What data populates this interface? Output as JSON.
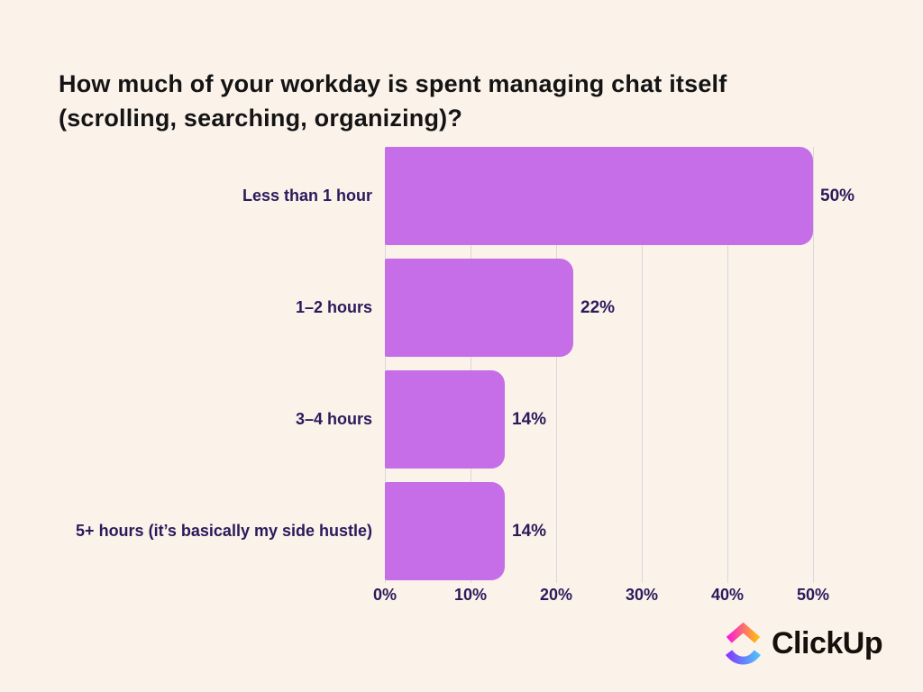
{
  "title": {
    "text": "How much of your workday is spent managing chat itself (scrolling, searching, organizing)?",
    "lines": [
      "How much of your workday is spent managing chat itself",
      "(scrolling, searching, organizing)?"
    ]
  },
  "chart_data": {
    "type": "bar",
    "orientation": "horizontal",
    "title": "How much of your workday is spent managing chat itself (scrolling, searching, organizing)?",
    "categories": [
      "Less than 1 hour",
      "1–2 hours",
      "3–4 hours",
      "5+ hours (it’s basically my side hustle)"
    ],
    "values": [
      50,
      22,
      14,
      14
    ],
    "value_labels": [
      "50%",
      "22%",
      "14%",
      "14%"
    ],
    "x_ticks": [
      0,
      10,
      20,
      30,
      40,
      50
    ],
    "x_tick_labels": [
      "0%",
      "10%",
      "20%",
      "30%",
      "40%",
      "50%"
    ],
    "xlim": [
      0,
      50
    ],
    "grid": true,
    "legend": false,
    "bar_color": "#C56EE7",
    "text_color": "#2B1A5B",
    "gridline_color": "#DCD6DC",
    "background_color": "#FBF2EA"
  },
  "footer": {
    "brand": "ClickUp",
    "logo_icon": "clickup-logo-icon",
    "logo_colors": {
      "top_gradient": [
        "#FA12E3",
        "#FFC800"
      ],
      "bottom_gradient": [
        "#8930FD",
        "#49CCF9"
      ]
    }
  }
}
